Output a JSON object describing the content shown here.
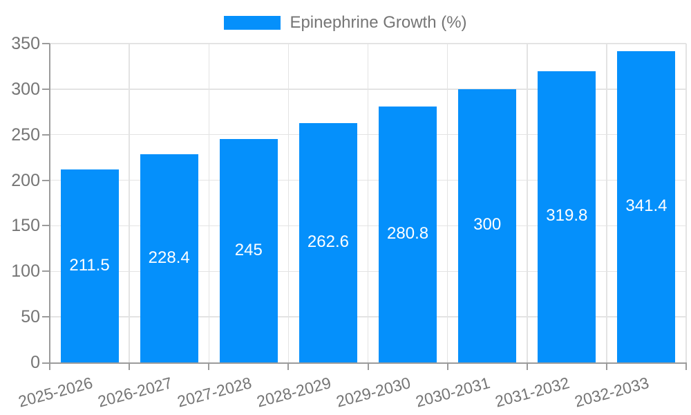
{
  "chart_data": {
    "type": "bar",
    "title": "",
    "legend": "Epinephrine Growth (%)",
    "legend_position": "top",
    "categories": [
      "2025-2026",
      "2026-2027",
      "2027-2028",
      "2028-2029",
      "2029-2030",
      "2030-2031",
      "2031-2032",
      "2032-2033"
    ],
    "values": [
      211.5,
      228.4,
      245,
      262.6,
      280.8,
      300,
      319.8,
      341.4
    ],
    "xlabel": "",
    "ylabel": "",
    "ylim": [
      0,
      350
    ],
    "yticks": [
      0,
      50,
      100,
      150,
      200,
      250,
      300,
      350
    ],
    "grid": true,
    "bar_labels_inside": true,
    "colors": {
      "bar": "#0590fb",
      "grid": "#e3e3e3",
      "axis": "#9b9b9b",
      "text": "#757575",
      "bar_label": "#ffffff",
      "background": "#ffffff"
    }
  }
}
